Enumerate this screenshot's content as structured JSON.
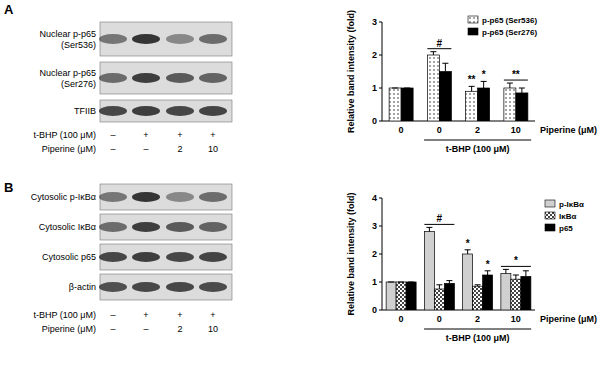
{
  "chart_data": [
    {
      "type": "bar",
      "categories": [
        "0",
        "0",
        "2",
        "10"
      ],
      "x_label": "Piperine (μM)",
      "y_label": "Relative band intensity (fold)",
      "bracket": {
        "label": "t-BHP (100 μM)",
        "from": 1,
        "to": 3
      },
      "series": [
        {
          "name": "p-p65 (Ser536)",
          "color": "#ffffff",
          "values": [
            1,
            2.0,
            0.9,
            1.0
          ],
          "errors": [
            0,
            0.1,
            0.15,
            0.15
          ]
        },
        {
          "name": "p-p65 (Ser276)",
          "color": "#000000",
          "values": [
            1,
            1.5,
            1.0,
            0.85
          ],
          "errors": [
            0,
            0.25,
            0.2,
            0.15
          ]
        }
      ],
      "ylim": [
        0,
        3
      ],
      "yticks": [
        0,
        1,
        2,
        3
      ],
      "legend": "upper right",
      "annotations": [
        {
          "text": "#",
          "category": 1,
          "series": [
            0,
            1
          ]
        },
        {
          "text": "**",
          "category": 2,
          "series": [
            0
          ]
        },
        {
          "text": "*",
          "category": 2,
          "series": [
            1
          ]
        },
        {
          "text": "**",
          "category": 3,
          "series": [
            0,
            1
          ]
        }
      ]
    },
    {
      "type": "bar",
      "categories": [
        "0",
        "0",
        "2",
        "10"
      ],
      "x_label": "Piperine (μM)",
      "y_label": "Relative band intensity (fold)",
      "bracket": {
        "label": "t-BHP (100 μM)",
        "from": 1,
        "to": 3
      },
      "series": [
        {
          "name": "p-IκBα",
          "color": "#d0d0d0",
          "values": [
            1,
            2.8,
            2.0,
            1.3
          ],
          "errors": [
            0,
            0.15,
            0.15,
            0.15
          ]
        },
        {
          "name": "IκBα",
          "color": "#ffffff",
          "values": [
            1,
            0.75,
            0.85,
            1.1
          ],
          "errors": [
            0,
            0.15,
            0.05,
            0.15
          ]
        },
        {
          "name": "p65",
          "color": "#000000",
          "values": [
            1,
            0.95,
            1.25,
            1.2
          ],
          "errors": [
            0,
            0.1,
            0.15,
            0.2
          ]
        }
      ],
      "ylim": [
        0,
        4
      ],
      "yticks": [
        0,
        1,
        2,
        3,
        4
      ],
      "legend": "right",
      "annotations": [
        {
          "text": "#",
          "category": 1,
          "series": [
            0,
            1,
            2
          ]
        },
        {
          "text": "*",
          "category": 2,
          "series": [
            0
          ]
        },
        {
          "text": "*",
          "category": 2,
          "series": [
            2
          ]
        },
        {
          "text": "*",
          "category": 3,
          "series": [
            0,
            1,
            2
          ]
        }
      ]
    }
  ],
  "blots": [
    {
      "panel": "A",
      "rows": [
        [
          "Nuclear p-p65",
          "(Ser536)"
        ],
        [
          "Nuclear p-p65",
          "(Ser276)"
        ],
        [
          "TFIIB"
        ]
      ],
      "treatments": [
        {
          "label": "t-BHP (100 μM)",
          "lanes": [
            "–",
            "+",
            "+",
            "+"
          ]
        },
        {
          "label": "Piperine (μM)",
          "lanes": [
            "–",
            "–",
            "2",
            "10"
          ]
        }
      ]
    },
    {
      "panel": "B",
      "rows": [
        [
          "Cytosolic p-IκBα"
        ],
        [
          "Cytosolic IκBα"
        ],
        [
          "Cytosolic p65"
        ],
        [
          "β-actin"
        ]
      ],
      "treatments": [
        {
          "label": "t-BHP (100 μM)",
          "lanes": [
            "–",
            "+",
            "+",
            "+"
          ]
        },
        {
          "label": "Piperine (μM)",
          "lanes": [
            "–",
            "–",
            "2",
            "10"
          ]
        }
      ]
    }
  ]
}
